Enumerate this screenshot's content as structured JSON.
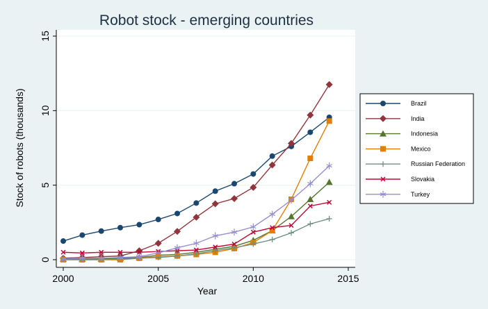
{
  "chart_data": {
    "type": "line",
    "title": "Robot stock - emerging countries",
    "xlabel": "Year",
    "ylabel": "Stock of robots (thousands)",
    "xlim": [
      2000,
      2015
    ],
    "ylim": [
      0,
      15
    ],
    "xticks": [
      2000,
      2005,
      2010,
      2015
    ],
    "yticks": [
      0,
      5,
      10,
      15
    ],
    "grid": "horizontal",
    "legend_position": "right",
    "x": [
      2000,
      2001,
      2002,
      2003,
      2004,
      2005,
      2006,
      2007,
      2008,
      2009,
      2010,
      2011,
      2012,
      2013,
      2014
    ],
    "series": [
      {
        "name": "Brazil",
        "color": "#1a476f",
        "marker": "circle",
        "values": [
          1.25,
          1.65,
          1.92,
          2.15,
          2.35,
          2.7,
          3.1,
          3.8,
          4.6,
          5.1,
          5.75,
          6.95,
          7.6,
          8.55,
          9.55
        ]
      },
      {
        "name": "India",
        "color": "#90353b",
        "marker": "diamond",
        "values": [
          0.1,
          0.15,
          0.2,
          0.25,
          0.6,
          1.1,
          1.9,
          2.85,
          3.75,
          4.1,
          4.85,
          6.35,
          7.8,
          9.7,
          11.75
        ]
      },
      {
        "name": "Indonesia",
        "color": "#55752f",
        "marker": "triangle",
        "values": [
          0.05,
          0.05,
          0.05,
          0.1,
          0.15,
          0.3,
          0.35,
          0.5,
          0.7,
          0.9,
          1.3,
          1.95,
          2.9,
          4.05,
          5.2
        ]
      },
      {
        "name": "Mexico",
        "color": "#e37e00",
        "marker": "square",
        "values": [
          0.0,
          0.0,
          0.0,
          0.0,
          0.1,
          0.2,
          0.25,
          0.35,
          0.5,
          0.75,
          1.15,
          1.95,
          4.05,
          6.8,
          9.3
        ]
      },
      {
        "name": "Russian Federation",
        "color": "#6e8e84",
        "marker": "plus",
        "values": [
          0.0,
          0.0,
          0.0,
          0.05,
          0.1,
          0.15,
          0.25,
          0.4,
          0.6,
          0.8,
          1.05,
          1.35,
          1.8,
          2.4,
          2.75
        ]
      },
      {
        "name": "Slovakia",
        "color": "#c10534",
        "marker": "x",
        "values": [
          0.5,
          0.45,
          0.5,
          0.5,
          0.5,
          0.55,
          0.6,
          0.65,
          0.85,
          1.05,
          1.85,
          2.15,
          2.3,
          3.6,
          3.85
        ]
      },
      {
        "name": "Turkey",
        "color": "#938dd2",
        "marker": "star",
        "values": [
          0.05,
          0.1,
          0.1,
          0.15,
          0.2,
          0.45,
          0.8,
          1.1,
          1.6,
          1.85,
          2.2,
          3.05,
          4.0,
          5.1,
          6.3
        ]
      }
    ]
  }
}
